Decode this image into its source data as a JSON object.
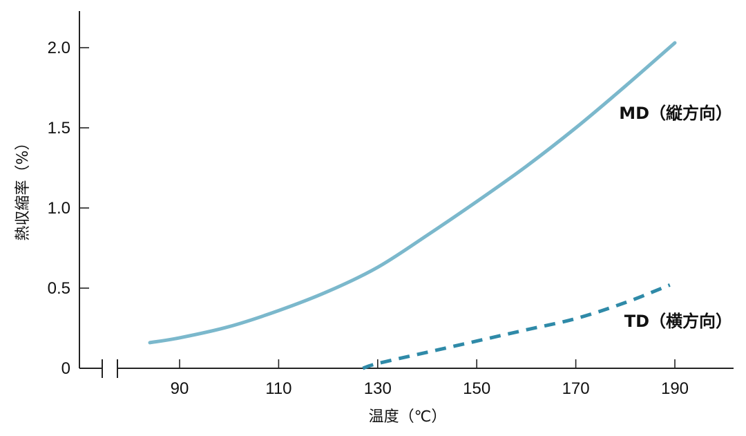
{
  "chart_data": {
    "type": "line",
    "xlabel": "温度（℃）",
    "ylabel": "熱収縮率（%）",
    "xlim": [
      70,
      200
    ],
    "ylim": [
      0,
      2.2
    ],
    "x_ticks": [
      {
        "value": 90,
        "label": "90"
      },
      {
        "value": 110,
        "label": "110"
      },
      {
        "value": 130,
        "label": "130"
      },
      {
        "value": 150,
        "label": "150"
      },
      {
        "value": 170,
        "label": "170"
      },
      {
        "value": 190,
        "label": "190"
      }
    ],
    "y_ticks": [
      {
        "value": 0,
        "label": "0"
      },
      {
        "value": 0.5,
        "label": "0.5"
      },
      {
        "value": 1.0,
        "label": "1.0"
      },
      {
        "value": 1.5,
        "label": "1.5"
      },
      {
        "value": 2.0,
        "label": "2.0"
      }
    ],
    "axis_break": true,
    "grid": false,
    "series": [
      {
        "name": "MD（縦方向）",
        "color": "#7bb8cc",
        "style": "solid",
        "x": [
          84,
          90,
          100,
          110,
          120,
          130,
          140,
          150,
          160,
          170,
          180,
          190
        ],
        "y": [
          0.16,
          0.19,
          0.26,
          0.36,
          0.48,
          0.63,
          0.83,
          1.04,
          1.26,
          1.5,
          1.76,
          2.03
        ]
      },
      {
        "name": "TD（横方向）",
        "color": "#2f8aa8",
        "style": "dashed",
        "x": [
          127,
          130,
          140,
          150,
          160,
          170,
          180,
          189
        ],
        "y": [
          0.0,
          0.03,
          0.1,
          0.17,
          0.24,
          0.31,
          0.41,
          0.52
        ]
      }
    ]
  }
}
